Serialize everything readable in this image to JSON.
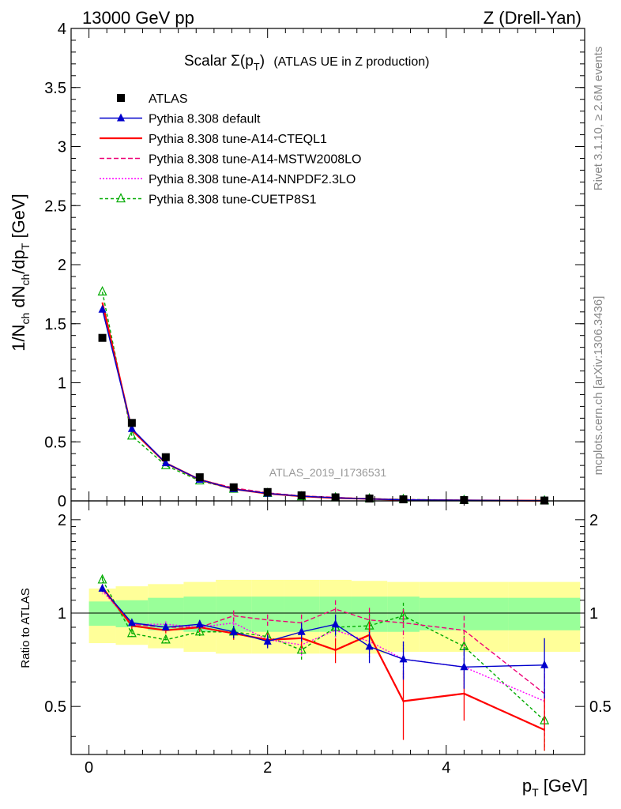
{
  "header": {
    "left": "13000 GeV pp",
    "right": "Z (Drell-Yan)"
  },
  "side_labels": {
    "rivet": "Rivet 3.1.10, ≥ 2.6M events",
    "mcplots": "mcplots.cern.ch [arXiv:1306.3436]"
  },
  "analysis_id": "ATLAS_2019_I1736531",
  "chart_data": [
    {
      "type": "scatter",
      "panel": "main",
      "title": "Scalar Σ(p_T) (ATLAS UE in Z production)",
      "title_parts": {
        "pre": "Scalar Σ(p",
        "sub": "T",
        "post": ")",
        "tail": "(ATLAS UE in Z production)"
      },
      "ylabel": "1/N_ch dN_ch/dp_T [GeV]",
      "ylabel_parts": {
        "a": "1/N",
        "a_sub": "ch",
        "b": " dN",
        "b_sub": "ch",
        "c": "/dp",
        "c_sub": "T",
        "d": " [GeV]"
      },
      "xlabel": "p_T [GeV]",
      "xlim": [
        -0.2,
        5.55
      ],
      "ylim": [
        0,
        4
      ],
      "yticks": [
        0,
        0.5,
        1,
        1.5,
        2,
        2.5,
        3,
        3.5,
        4
      ],
      "ytick_labels": [
        "0",
        "0.5",
        "1",
        "1.5",
        "2",
        "2.5",
        "3",
        "3.5",
        "4"
      ],
      "legend_position": "top-left",
      "x": [
        0.15,
        0.48,
        0.86,
        1.24,
        1.62,
        2.0,
        2.38,
        2.76,
        3.14,
        3.52,
        4.2,
        5.1
      ],
      "series": [
        {
          "name": "ATLAS",
          "color": "#000000",
          "marker": "square",
          "values": [
            1.38,
            0.66,
            0.37,
            0.2,
            0.115,
            0.075,
            0.047,
            0.03,
            0.02,
            0.013,
            0.007,
            0.003
          ]
        },
        {
          "name": "Pythia 8.308 default",
          "color": "#0000cc",
          "marker": "triangle",
          "dash": "",
          "values": [
            1.62,
            0.61,
            0.32,
            0.18,
            0.1,
            0.063,
            0.04,
            0.026,
            0.016,
            0.009,
            0.005,
            0.002
          ]
        },
        {
          "name": "Pythia 8.308 tune-A14-CTEQL1",
          "color": "#ff0000",
          "marker": "none",
          "dash": "",
          "values": [
            1.68,
            0.6,
            0.32,
            0.18,
            0.1,
            0.062,
            0.039,
            0.024,
            0.017,
            0.007,
            0.004,
            0.0015
          ]
        },
        {
          "name": "Pythia 8.308 tune-A14-MSTW2008LO",
          "color": "#ee0077",
          "marker": "none",
          "dash": "6,3",
          "values": [
            1.66,
            0.61,
            0.32,
            0.18,
            0.11,
            0.068,
            0.043,
            0.03,
            0.018,
            0.012,
            0.006,
            0.0018
          ]
        },
        {
          "name": "Pythia 8.308 tune-A14-NNPDF2.3LO",
          "color": "#ff00ff",
          "marker": "none",
          "dash": "2,2",
          "values": [
            1.64,
            0.6,
            0.32,
            0.18,
            0.105,
            0.062,
            0.04,
            0.026,
            0.016,
            0.009,
            0.005,
            0.0016
          ]
        },
        {
          "name": "Pythia 8.308 tune-CUETP8S1",
          "color": "#00aa00",
          "marker": "triangle-open",
          "dash": "4,3",
          "values": [
            1.77,
            0.55,
            0.3,
            0.17,
            0.1,
            0.064,
            0.036,
            0.027,
            0.018,
            0.013,
            0.0055,
            0.0013
          ]
        }
      ]
    },
    {
      "type": "line",
      "panel": "ratio",
      "ylabel": "Ratio to ATLAS",
      "xlim": [
        -0.2,
        5.55
      ],
      "ylim": [
        0.35,
        2.3
      ],
      "xticks": [
        0,
        2,
        4
      ],
      "xtick_labels": [
        "0",
        "2",
        "4"
      ],
      "yticks": [
        0.5,
        1,
        2
      ],
      "ytick_labels": [
        "0.5",
        "1",
        "2"
      ],
      "bin_edges": [
        0.0,
        0.3,
        0.66,
        1.06,
        1.42,
        1.82,
        2.18,
        2.58,
        2.94,
        3.34,
        3.7,
        4.7,
        5.5
      ],
      "bands": {
        "inner": {
          "color": "#99ff99",
          "lo": [
            0.91,
            0.9,
            0.88,
            0.87,
            0.87,
            0.87,
            0.87,
            0.87,
            0.87,
            0.87,
            0.88,
            0.88
          ],
          "hi": [
            1.09,
            1.1,
            1.12,
            1.13,
            1.13,
            1.13,
            1.13,
            1.13,
            1.13,
            1.13,
            1.12,
            1.12
          ]
        },
        "outer": {
          "color": "#ffff99",
          "lo": [
            0.8,
            0.79,
            0.77,
            0.75,
            0.74,
            0.74,
            0.74,
            0.74,
            0.74,
            0.75,
            0.75,
            0.75
          ],
          "hi": [
            1.2,
            1.22,
            1.24,
            1.26,
            1.28,
            1.28,
            1.28,
            1.28,
            1.27,
            1.26,
            1.26,
            1.26
          ]
        }
      },
      "x": [
        0.15,
        0.48,
        0.86,
        1.24,
        1.62,
        2.0,
        2.38,
        2.76,
        3.14,
        3.52,
        4.2,
        5.1
      ],
      "series": [
        {
          "name": "Pythia 8.308 default",
          "color": "#0000cc",
          "marker": "triangle",
          "dash": "",
          "values": [
            1.2,
            0.93,
            0.9,
            0.92,
            0.87,
            0.81,
            0.87,
            0.92,
            0.78,
            0.71,
            0.67,
            0.68
          ],
          "err": [
            0.03,
            0.02,
            0.02,
            0.03,
            0.04,
            0.04,
            0.06,
            0.07,
            0.09,
            0.1,
            0.1,
            0.15
          ]
        },
        {
          "name": "Pythia 8.308 tune-A14-CTEQL1",
          "color": "#ff0000",
          "marker": "none",
          "dash": "",
          "values": [
            1.21,
            0.91,
            0.88,
            0.9,
            0.86,
            0.82,
            0.83,
            0.76,
            0.85,
            0.52,
            0.55,
            0.42
          ],
          "err": [
            0.03,
            0.02,
            0.02,
            0.03,
            0.04,
            0.04,
            0.06,
            0.07,
            0.09,
            0.13,
            0.1,
            0.12
          ]
        },
        {
          "name": "Pythia 8.308 tune-A14-MSTW2008LO",
          "color": "#ee0077",
          "marker": "none",
          "dash": "6,3",
          "values": [
            1.19,
            0.92,
            0.9,
            0.9,
            0.98,
            0.95,
            0.93,
            1.03,
            0.95,
            0.93,
            0.88,
            0.55
          ],
          "err": [
            0.03,
            0.02,
            0.02,
            0.03,
            0.04,
            0.04,
            0.06,
            0.07,
            0.09,
            0.1,
            0.1,
            0.12
          ]
        },
        {
          "name": "Pythia 8.308 tune-A14-NNPDF2.3LO",
          "color": "#ff00ff",
          "marker": "none",
          "dash": "2,2",
          "values": [
            1.18,
            0.92,
            0.92,
            0.9,
            0.93,
            0.82,
            0.79,
            0.88,
            0.81,
            0.71,
            0.67,
            0.52
          ],
          "err": [
            0.03,
            0.02,
            0.02,
            0.03,
            0.04,
            0.04,
            0.06,
            0.07,
            0.09,
            0.1,
            0.1,
            0.12
          ]
        },
        {
          "name": "Pythia 8.308 tune-CUETP8S1",
          "color": "#00aa00",
          "marker": "triangle-open",
          "dash": "4,3",
          "values": [
            1.28,
            0.86,
            0.82,
            0.87,
            0.87,
            0.84,
            0.76,
            0.9,
            0.91,
            0.98,
            0.78,
            0.45
          ],
          "err": [
            0.03,
            0.02,
            0.02,
            0.03,
            0.04,
            0.04,
            0.06,
            0.07,
            0.09,
            0.1,
            0.1,
            0.12
          ]
        }
      ]
    }
  ]
}
